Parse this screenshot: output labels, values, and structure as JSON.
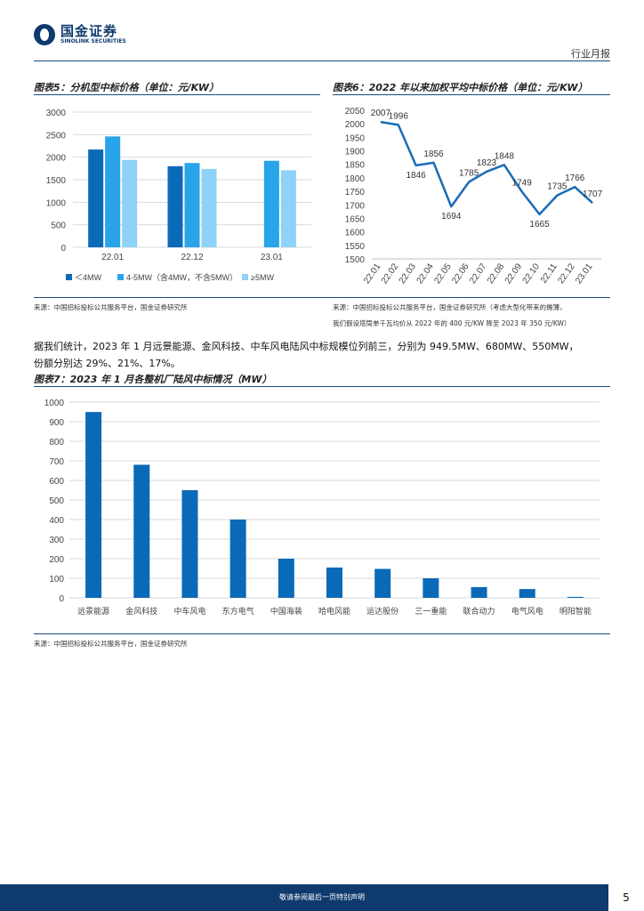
{
  "header": {
    "company_cn": "国金证券",
    "company_en": "SINOLINK SECURITIES",
    "report_type": "行业月报"
  },
  "figure5": {
    "title": "图表5：分机型中标价格（单位：元/KW）",
    "source": "来源：中国招标投标公共服务平台，国金证券研究所"
  },
  "figure6": {
    "title": "图表6：2022 年以来加权平均中标价格（单位：元/KW）",
    "source_line1": "来源：中国招标投标公共服务平台，国金证券研究所（考虑大型化带来的摊薄，",
    "source_line2": "我们假设塔筒单千瓦均价从 2022 年的 400 元/KW 降至 2023 年 350 元/KW）"
  },
  "paragraph": {
    "line1": "据我们统计，2023 年 1 月远景能源、金风科技、中车风电陆风中标规模位列前三，分别为 949.5MW、680MW、550MW，",
    "line2": "份额分别达 29%、21%、17%。"
  },
  "figure7": {
    "title": "图表7：2023 年 1 月各整机厂陆风中标情况（MW）",
    "source": "来源：中国招标投标公共服务平台，国金证券研究所"
  },
  "footer": {
    "disclaimer": "敬请参阅最后一页特别声明",
    "page_number": "5"
  },
  "colors": {
    "brand": "#0e3a6e",
    "series_dark": "#0b6ab8",
    "series_mid": "#29a3ea",
    "series_light": "#8fd2f7",
    "line": "#1a6cb6"
  },
  "chart_data": [
    {
      "type": "bar",
      "title": "图表5：分机型中标价格（单位：元/KW）",
      "categories": [
        "22.01",
        "22.12",
        "23.01"
      ],
      "series": [
        {
          "name": "＜4MW",
          "values": [
            2170,
            1800,
            null
          ]
        },
        {
          "name": "4-5MW（含4MW，不含5MW）",
          "values": [
            2460,
            1870,
            1920
          ]
        },
        {
          "name": "≥5MW",
          "values": [
            1940,
            1740,
            1710
          ]
        }
      ],
      "ylim": [
        0,
        3000
      ],
      "yticks": [
        0,
        500,
        1000,
        1500,
        2000,
        2500,
        3000
      ],
      "grid": true,
      "legend": "bottom"
    },
    {
      "type": "line",
      "title": "图表6：2022 年以来加权平均中标价格（单位：元/KW）",
      "x": [
        "22.01",
        "22.02",
        "22.03",
        "22.04",
        "22.05",
        "22.06",
        "22.07",
        "22.08",
        "22.09",
        "22.10",
        "22.11",
        "22.12",
        "23.01"
      ],
      "values": [
        2007,
        1996,
        1846,
        1856,
        1694,
        1785,
        1823,
        1848,
        1749,
        1665,
        1735,
        1766,
        1707
      ],
      "ylim": [
        1500,
        2050
      ],
      "yticks": [
        1500,
        1550,
        1600,
        1650,
        1700,
        1750,
        1800,
        1850,
        1900,
        1950,
        2000,
        2050
      ],
      "grid": false
    },
    {
      "type": "bar",
      "title": "图表7：2023 年 1 月各整机厂陆风中标情况（MW）",
      "categories": [
        "远景能源",
        "金风科技",
        "中车风电",
        "东方电气",
        "中国海装",
        "哈电风能",
        "运达股份",
        "三一重能",
        "联合动力",
        "电气风电",
        "明阳智能"
      ],
      "values": [
        949.5,
        680,
        550,
        400,
        200,
        155,
        148,
        100,
        55,
        45,
        5
      ],
      "ylim": [
        0,
        1000
      ],
      "yticks": [
        0,
        100,
        200,
        300,
        400,
        500,
        600,
        700,
        800,
        900,
        1000
      ],
      "grid": true
    }
  ]
}
